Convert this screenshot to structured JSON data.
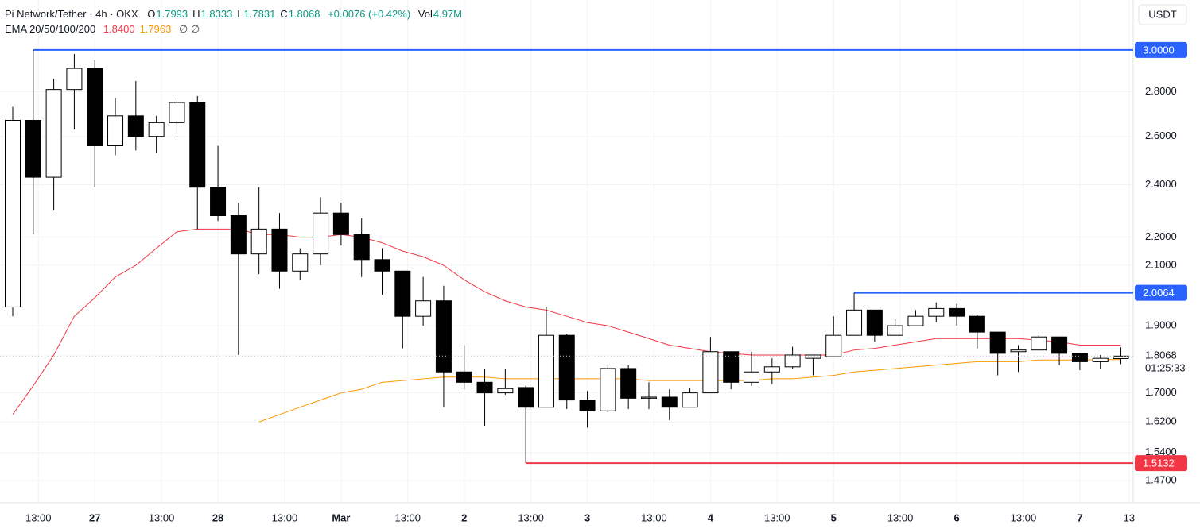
{
  "chart_data": {
    "type": "candlestick",
    "header": {
      "symbol": "Pi Network/Tether · 4h · OKX",
      "ohlc": [
        {
          "label": "O",
          "value": "1.7993"
        },
        {
          "label": "H",
          "value": "1.8333"
        },
        {
          "label": "L",
          "value": "1.7831"
        },
        {
          "label": "C",
          "value": "1.8068"
        }
      ],
      "change": "+0.0076 (+0.42%)",
      "volume": {
        "label": "Vol",
        "value": "4.97M"
      }
    },
    "indicator_label": "EMA 20/50/100/200",
    "currency_label": "USDT",
    "log_scale": true,
    "grid": true,
    "up_color": "#ffffff",
    "down_color": "#000000",
    "open": [
      1.96,
      2.67,
      2.43,
      2.81,
      2.91,
      2.56,
      2.69,
      2.6,
      2.66,
      2.75,
      2.39,
      2.28,
      2.14,
      2.23,
      2.08,
      2.14,
      2.29,
      2.21,
      2.12,
      2.08,
      1.93,
      1.98,
      1.76,
      1.73,
      1.7,
      1.715,
      1.66,
      1.87,
      1.68,
      1.65,
      1.77,
      1.685,
      1.688,
      1.66,
      1.7,
      1.82,
      1.73,
      1.76,
      1.775,
      1.8,
      1.805,
      1.87,
      1.95,
      1.87,
      1.9,
      1.93,
      1.955,
      1.93,
      1.88,
      1.82,
      1.825,
      1.865,
      1.815,
      1.79,
      1.7993
    ],
    "high": [
      2.73,
      3.0,
      2.86,
      2.98,
      2.95,
      2.77,
      2.85,
      2.69,
      2.76,
      2.78,
      2.56,
      2.33,
      2.39,
      2.29,
      2.16,
      2.35,
      2.33,
      2.27,
      2.16,
      2.08,
      2.06,
      2.03,
      1.84,
      1.77,
      1.77,
      1.72,
      1.96,
      1.875,
      1.705,
      1.78,
      1.78,
      1.73,
      1.71,
      1.715,
      1.865,
      1.82,
      1.82,
      1.8,
      1.835,
      1.81,
      1.93,
      2.0064,
      1.95,
      1.92,
      1.95,
      1.975,
      1.97,
      1.935,
      1.88,
      1.84,
      1.87,
      1.865,
      1.815,
      1.81,
      1.8333
    ],
    "low": [
      1.93,
      2.21,
      2.3,
      2.63,
      2.39,
      2.52,
      2.54,
      2.53,
      2.61,
      2.23,
      2.26,
      1.81,
      2.07,
      2.02,
      2.05,
      2.1,
      2.17,
      2.06,
      2.0,
      1.83,
      1.9,
      1.66,
      1.71,
      1.61,
      1.695,
      1.5132,
      1.66,
      1.655,
      1.605,
      1.645,
      1.655,
      1.655,
      1.625,
      1.66,
      1.7,
      1.71,
      1.72,
      1.725,
      1.77,
      1.75,
      1.805,
      1.87,
      1.85,
      1.87,
      1.9,
      1.91,
      1.9,
      1.83,
      1.75,
      1.76,
      1.825,
      1.78,
      1.765,
      1.77,
      1.7831
    ],
    "close": [
      2.67,
      2.43,
      2.81,
      2.91,
      2.56,
      2.69,
      2.6,
      2.66,
      2.75,
      2.39,
      2.28,
      2.14,
      2.23,
      2.08,
      2.14,
      2.29,
      2.21,
      2.12,
      2.08,
      1.93,
      1.98,
      1.76,
      1.73,
      1.7,
      1.712,
      1.66,
      1.87,
      1.68,
      1.65,
      1.77,
      1.685,
      1.688,
      1.66,
      1.7,
      1.82,
      1.73,
      1.76,
      1.775,
      1.81,
      1.81,
      1.87,
      1.95,
      1.87,
      1.9,
      1.93,
      1.955,
      1.93,
      1.88,
      1.815,
      1.825,
      1.865,
      1.815,
      1.79,
      1.8,
      1.8068
    ],
    "series": [
      {
        "color": "#f23645",
        "value_label": "1.8400",
        "values": [
          1.64,
          1.72,
          1.81,
          1.93,
          1.99,
          2.06,
          2.1,
          2.16,
          2.22,
          2.23,
          2.23,
          2.23,
          2.21,
          2.21,
          2.2,
          2.2,
          2.21,
          2.2,
          2.18,
          2.15,
          2.13,
          2.1,
          2.05,
          2.01,
          1.98,
          1.96,
          1.95,
          1.93,
          1.91,
          1.9,
          1.88,
          1.86,
          1.84,
          1.83,
          1.82,
          1.815,
          1.81,
          1.81,
          1.81,
          1.81,
          1.81,
          1.825,
          1.83,
          1.84,
          1.85,
          1.86,
          1.86,
          1.86,
          1.86,
          1.86,
          1.855,
          1.85,
          1.84,
          1.84,
          1.84
        ]
      },
      {
        "color": "#ff9800",
        "value_label": "1.7963",
        "values": [
          null,
          null,
          null,
          null,
          null,
          null,
          null,
          null,
          null,
          null,
          null,
          null,
          1.62,
          1.64,
          1.66,
          1.68,
          1.7,
          1.71,
          1.73,
          1.735,
          1.74,
          1.745,
          1.745,
          1.745,
          1.74,
          1.74,
          1.74,
          1.74,
          1.74,
          1.74,
          1.74,
          1.735,
          1.735,
          1.735,
          1.735,
          1.735,
          1.735,
          1.74,
          1.74,
          1.745,
          1.75,
          1.76,
          1.765,
          1.77,
          1.775,
          1.78,
          1.785,
          1.79,
          1.79,
          1.79,
          1.795,
          1.795,
          1.795,
          1.796,
          1.7963
        ]
      }
    ],
    "levels": [
      {
        "value": 3.0,
        "label": "3.0000",
        "color": "#2962ff"
      },
      {
        "value": 2.0064,
        "label": "2.0064",
        "color": "#2962ff"
      },
      {
        "value": 1.5132,
        "label": "1.5132",
        "color": "#f23645"
      }
    ],
    "current_price": {
      "value": 1.8068,
      "label": "1.8068",
      "countdown": "01:25:33"
    },
    "xlim": [
      -0.62,
      54.6
    ],
    "xticks": [
      {
        "value": 1.25,
        "label": "13:00"
      },
      {
        "value": 4,
        "label": "27"
      },
      {
        "value": 7.25,
        "label": "13:00"
      },
      {
        "value": 10,
        "label": "28"
      },
      {
        "value": 13.25,
        "label": "13:00"
      },
      {
        "value": 16,
        "label": "Mar"
      },
      {
        "value": 19.25,
        "label": "13:00"
      },
      {
        "value": 22,
        "label": "2"
      },
      {
        "value": 25.25,
        "label": "13:00"
      },
      {
        "value": 28,
        "label": "3"
      },
      {
        "value": 31.25,
        "label": "13:00"
      },
      {
        "value": 34,
        "label": "4"
      },
      {
        "value": 37.25,
        "label": "13:00"
      },
      {
        "value": 40,
        "label": "5"
      },
      {
        "value": 43.25,
        "label": "13:00"
      },
      {
        "value": 46,
        "label": "6"
      },
      {
        "value": 49.25,
        "label": "13:00"
      },
      {
        "value": 52,
        "label": "7"
      },
      {
        "value": 54.4,
        "label": "13"
      }
    ],
    "ylim": [
      1.417,
      3.259
    ],
    "yticks": [
      {
        "value": 1.47,
        "label": "1.4700"
      },
      {
        "value": 1.54,
        "label": "1.5400"
      },
      {
        "value": 1.62,
        "label": "1.6200"
      },
      {
        "value": 1.7,
        "label": "1.7000"
      },
      {
        "value": 1.9,
        "label": "1.9000"
      },
      {
        "value": 2.1,
        "label": "2.1000"
      },
      {
        "value": 2.2,
        "label": "2.2000"
      },
      {
        "value": 2.4,
        "label": "2.4000"
      },
      {
        "value": 2.6,
        "label": "2.6000"
      },
      {
        "value": 2.8,
        "label": "2.8000"
      }
    ]
  }
}
